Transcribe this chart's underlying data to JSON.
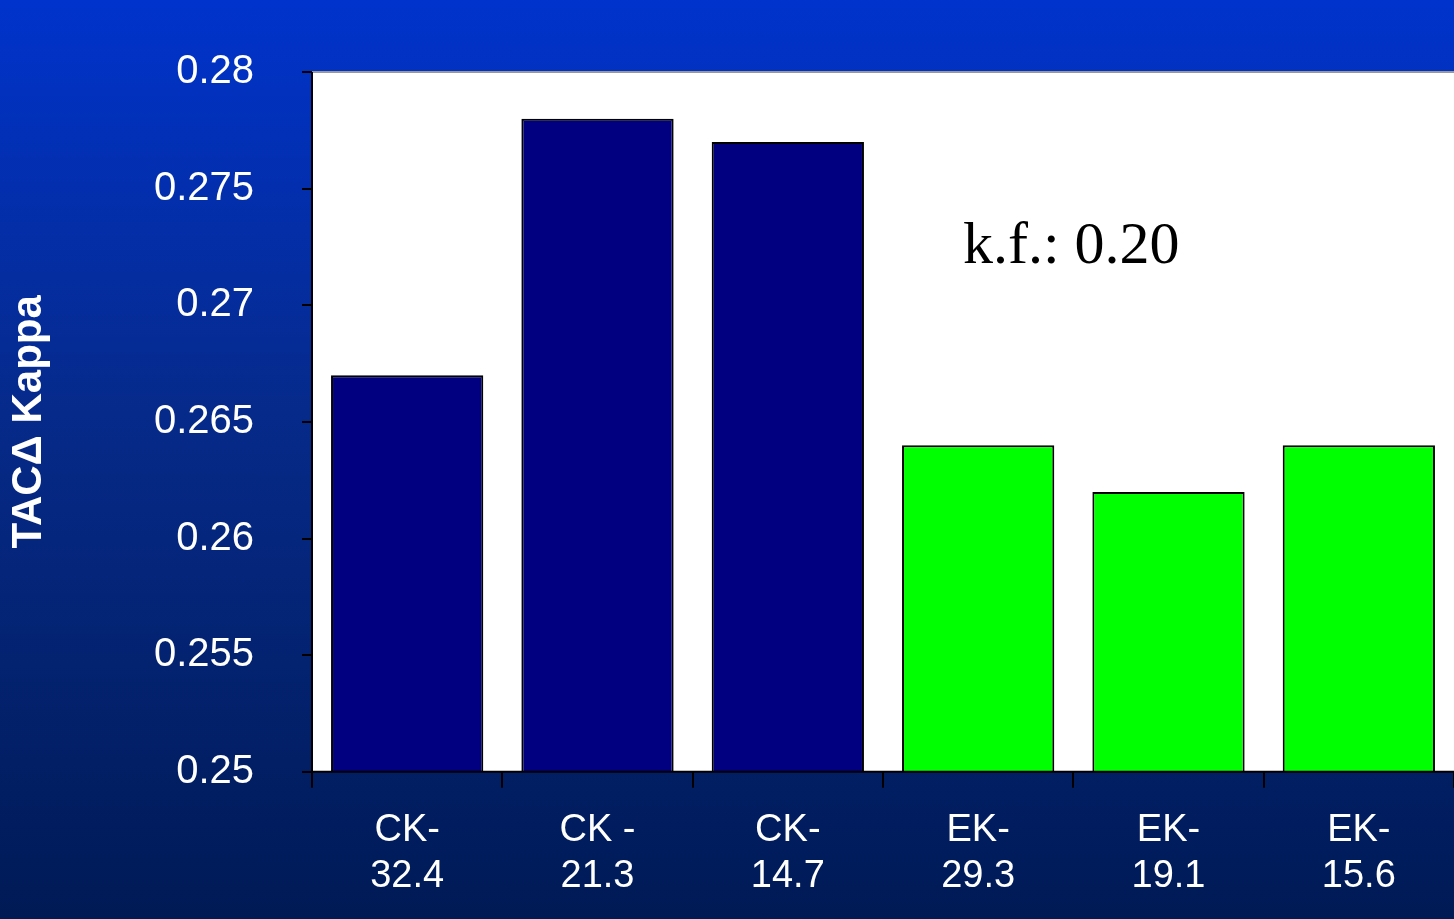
{
  "chart_data": {
    "type": "bar",
    "ylabel": "TACΔ Kappa",
    "categories": [
      "CK-\n32.4",
      "CK -\n21.3",
      "CK-\n14.7",
      "EK-\n29.3",
      "EK-\n19.1",
      "EK-\n15.6"
    ],
    "values": [
      0.267,
      0.278,
      0.277,
      0.264,
      0.262,
      0.264
    ],
    "colors": [
      "#000080",
      "#000080",
      "#000080",
      "#00ff00",
      "#00ff00",
      "#00ff00"
    ],
    "ylim": [
      0.25,
      0.28
    ],
    "yticks": [
      0.25,
      0.255,
      0.26,
      0.265,
      0.27,
      0.275,
      0.28
    ],
    "annotations": [
      "k.f.: 0.20"
    ],
    "grid": false,
    "legend": false
  }
}
